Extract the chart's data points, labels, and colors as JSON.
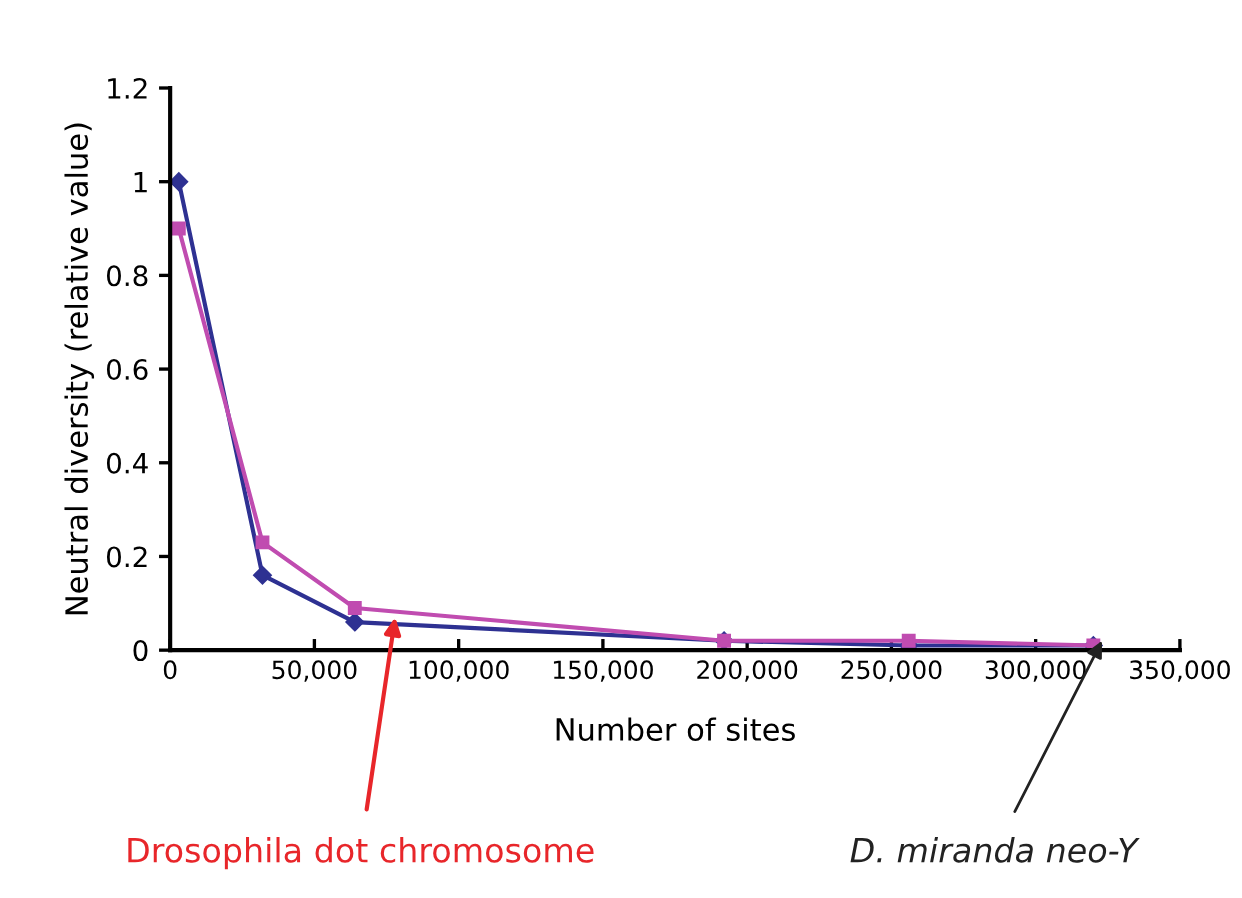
{
  "chart_data": {
    "type": "line",
    "xlabel": "Number of sites",
    "ylabel": "Neutral diversity (relative value)",
    "x": [
      3000,
      32000,
      64000,
      192000,
      256000,
      320000
    ],
    "series": [
      {
        "color": "#2e3192",
        "marker": "diamond",
        "values": [
          1.0,
          0.16,
          0.06,
          0.02,
          0.01,
          0.01
        ]
      },
      {
        "color": "#c04cb0",
        "marker": "square",
        "values": [
          0.9,
          0.23,
          0.09,
          0.02,
          0.02,
          0.01
        ]
      }
    ],
    "xlim": [
      0,
      350000
    ],
    "ylim": [
      0,
      1.2
    ],
    "xticks": [
      0,
      {
        "value": 50000,
        "label": "50,000"
      },
      {
        "value": 100000,
        "label": "100,000"
      },
      {
        "value": 150000,
        "label": "150,000"
      },
      {
        "value": 200000,
        "label": "200,000"
      },
      {
        "value": 250000,
        "label": "250,000"
      },
      {
        "value": 300000,
        "label": "300,000"
      },
      {
        "value": 350000,
        "label": "350,000"
      }
    ],
    "yticks": [
      0,
      0.2,
      0.4,
      0.6,
      0.8,
      1,
      1.2
    ],
    "grid": false,
    "annotations": [
      {
        "text": "Drosophila dot chromosome",
        "x": 78000,
        "y": 0.07
      },
      {
        "text": "D. miranda neo-Y",
        "x": 323000,
        "y": 0.02
      }
    ]
  }
}
